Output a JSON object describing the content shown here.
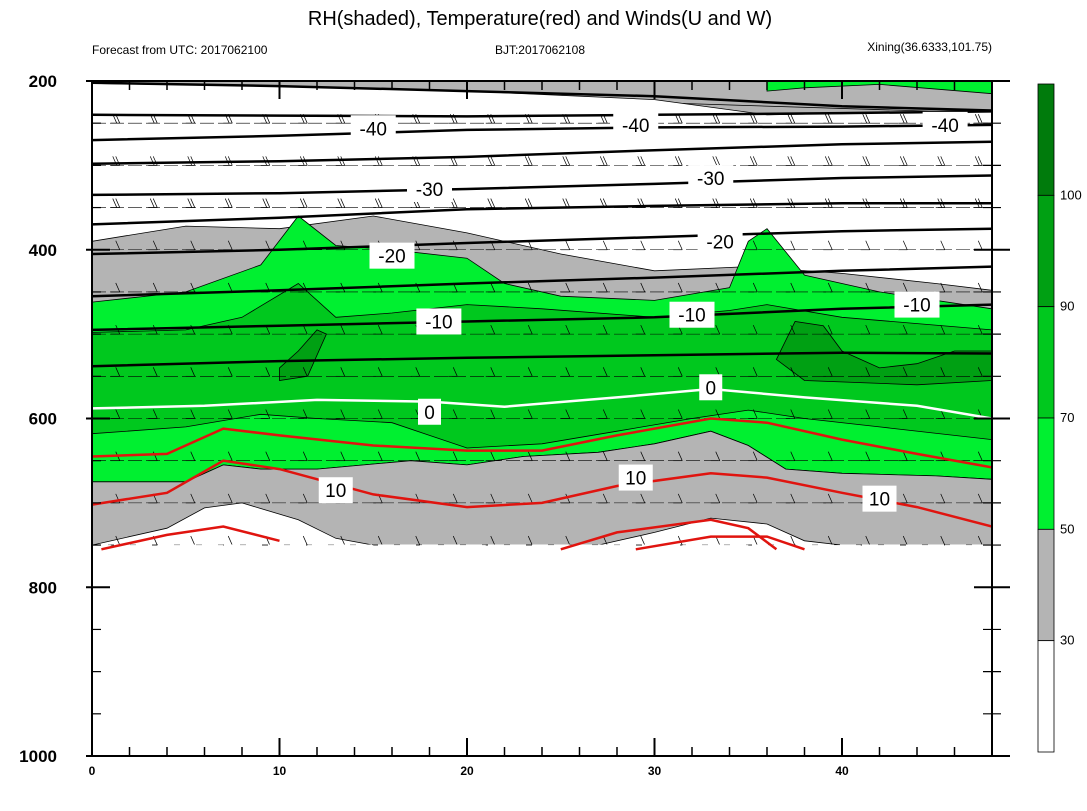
{
  "chart_data": {
    "type": "heatmap",
    "title": "RH(shaded), Temperature(red) and Winds(U and W)",
    "subtitle_left": "Forecast from UTC: 2017062100",
    "subtitle_center": "BJT:2017062108",
    "subtitle_right": "Xining(36.6333,101.75)",
    "x_ticks": [
      "0",
      "10",
      "20",
      "30",
      "40"
    ],
    "x_tick_values": [
      0,
      10,
      20,
      30,
      40
    ],
    "xlim": [
      0,
      48
    ],
    "y_ticks": [
      "200",
      "400",
      "600",
      "800",
      "1000"
    ],
    "y_tick_values": [
      200,
      400,
      600,
      800,
      1000
    ],
    "ylim": [
      200,
      1000
    ],
    "y_inverted": true,
    "grid": false,
    "colorbar": {
      "position": "right",
      "labels": [
        "30",
        "50",
        "70",
        "90",
        "100"
      ],
      "levels": [
        30,
        50,
        70,
        90,
        100
      ],
      "colors": [
        "#ffffff",
        "#b4b4b4",
        "#00f030",
        "#00c81e",
        "#00a013",
        "#007b0c"
      ]
    },
    "temperature_contour_labels": [
      {
        "text": "-40",
        "x": 15,
        "p": 256
      },
      {
        "text": "-40",
        "x": 29,
        "p": 252
      },
      {
        "text": "-40",
        "x": 45.5,
        "p": 252
      },
      {
        "text": "-30",
        "x": 18,
        "p": 328
      },
      {
        "text": "-30",
        "x": 33,
        "p": 315
      },
      {
        "text": "-20",
        "x": 16,
        "p": 407
      },
      {
        "text": "-20",
        "x": 33.5,
        "p": 390
      },
      {
        "text": "-10",
        "x": 18.5,
        "p": 485
      },
      {
        "text": "-10",
        "x": 32,
        "p": 477
      },
      {
        "text": "-10",
        "x": 44,
        "p": 465
      },
      {
        "text": "0",
        "x": 18,
        "p": 592
      },
      {
        "text": "0",
        "x": 33,
        "p": 563
      },
      {
        "text": "10",
        "x": 13,
        "p": 685
      },
      {
        "text": "10",
        "x": 29,
        "p": 670
      },
      {
        "text": "10",
        "x": 42,
        "p": 695
      }
    ]
  }
}
